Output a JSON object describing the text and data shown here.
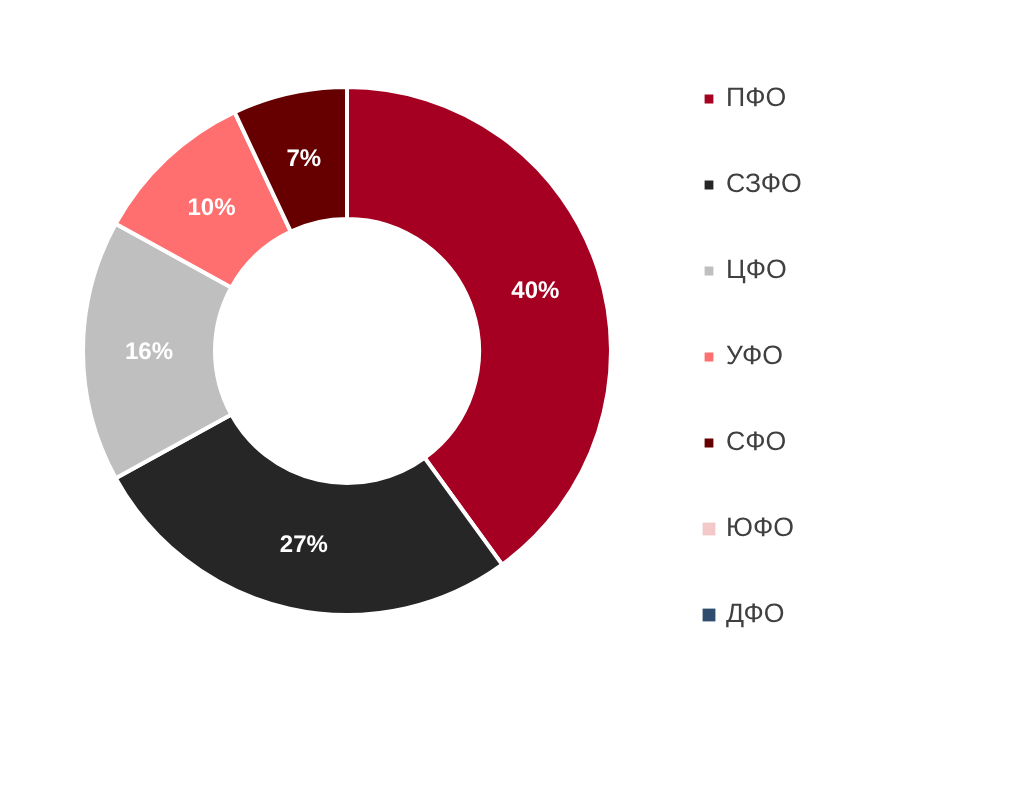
{
  "chart_data": {
    "type": "donut",
    "categories": [
      "ПФО",
      "СЗФО",
      "ЦФО",
      "УФО",
      "СФО",
      "ЮФО",
      "ДФО"
    ],
    "values": [
      40,
      27,
      16,
      10,
      7,
      0,
      0
    ],
    "colors": [
      "#a50021",
      "#262626",
      "#bfbfbf",
      "#ff6f6f",
      "#660000",
      "#f2c8c8",
      "#2f4b6e"
    ],
    "value_labels": [
      "40%",
      "27%",
      "16%",
      "10%",
      "7%",
      null,
      null
    ],
    "legend": "right"
  }
}
